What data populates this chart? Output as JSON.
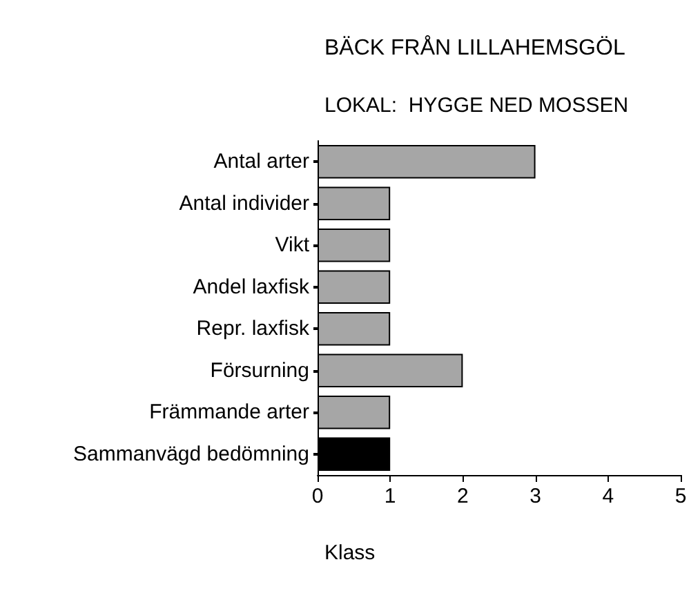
{
  "chart_data": {
    "type": "bar",
    "orientation": "horizontal",
    "title": "BÄCK FRÅN LILLAHEMSGÖL",
    "subtitle": "LOKAL:  HYGGE NED MOSSEN",
    "xlabel": "Klass",
    "categories": [
      "Antal arter",
      "Antal individer",
      "Vikt",
      "Andel laxfisk",
      "Repr. laxfisk",
      "Försurning",
      "Främmande arter",
      "Sammanvägd bedömning"
    ],
    "values": [
      3,
      1,
      1,
      1,
      1,
      2,
      1,
      1
    ],
    "colors": [
      "#a6a6a6",
      "#a6a6a6",
      "#a6a6a6",
      "#a6a6a6",
      "#a6a6a6",
      "#a6a6a6",
      "#a6a6a6",
      "#000000"
    ],
    "xlim": [
      0,
      5
    ],
    "xticks": [
      0,
      1,
      2,
      3,
      4,
      5
    ],
    "grid": false
  }
}
